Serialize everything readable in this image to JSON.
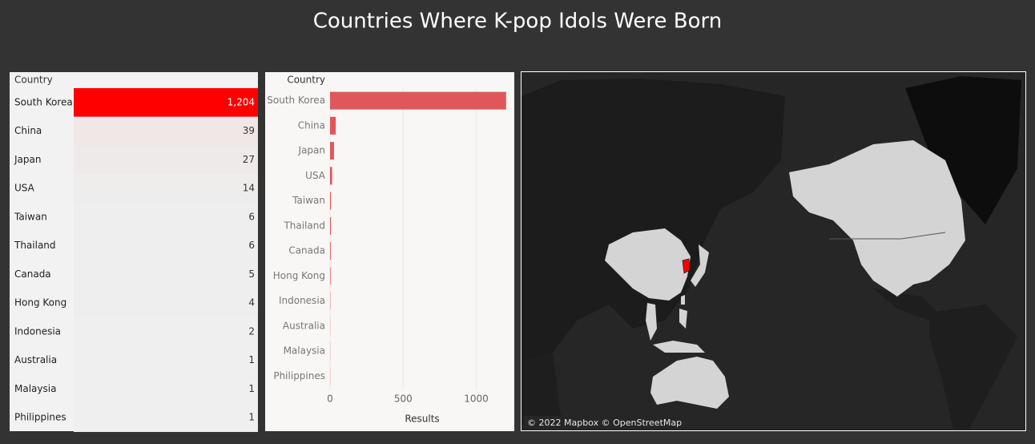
{
  "title": "Countries Where K-pop Idols Were Born",
  "chart_data": [
    {
      "type": "table",
      "column_header": "Country",
      "categories": [
        "South Korea",
        "China",
        "Japan",
        "USA",
        "Taiwan",
        "Thailand",
        "Canada",
        "Hong Kong",
        "Indonesia",
        "Australia",
        "Malaysia",
        "Philippines"
      ],
      "values": [
        1204,
        39,
        27,
        14,
        6,
        6,
        5,
        4,
        2,
        1,
        1,
        1
      ],
      "value_labels": [
        "1,204",
        "39",
        "27",
        "14",
        "6",
        "6",
        "5",
        "4",
        "2",
        "1",
        "1",
        "1"
      ],
      "color_range": [
        "#efefef",
        "#ff0000"
      ]
    },
    {
      "type": "bar",
      "y_label": "Country",
      "x_label": "Results",
      "categories": [
        "South Korea",
        "China",
        "Japan",
        "USA",
        "Taiwan",
        "Thailand",
        "Canada",
        "Hong Kong",
        "Indonesia",
        "Australia",
        "Malaysia",
        "Philippines"
      ],
      "values": [
        1204,
        39,
        27,
        14,
        6,
        6,
        5,
        4,
        2,
        1,
        1,
        1
      ],
      "color": "#e15759",
      "xlim": [
        0,
        1260
      ],
      "xticks": [
        0,
        500,
        1000
      ],
      "grid": true
    },
    {
      "type": "map",
      "attribution": "© 2022 Mapbox © OpenStreetMap",
      "highlight_color": "#d4d4d4",
      "top_color": "#ff0000"
    }
  ]
}
